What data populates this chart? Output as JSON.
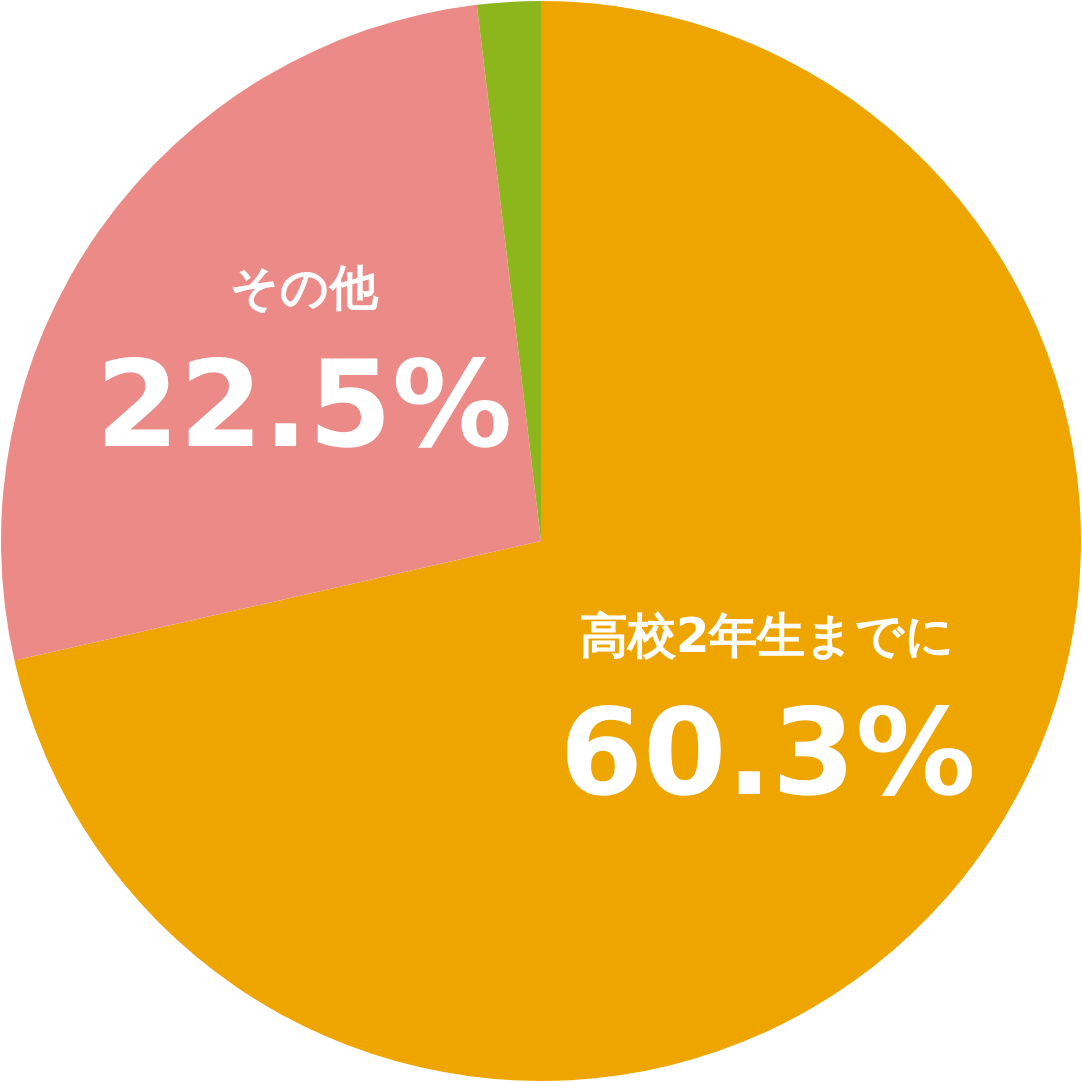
{
  "chart_data": {
    "type": "pie",
    "categories": [
      "高校2年生までに",
      "その他",
      null
    ],
    "values": [
      60.3,
      22.5,
      1.6
    ],
    "colors": [
      "#eea500",
      "#ec8a87",
      "#8cb61c"
    ],
    "value_labels": [
      "60.3%",
      "22.5%",
      null
    ]
  }
}
